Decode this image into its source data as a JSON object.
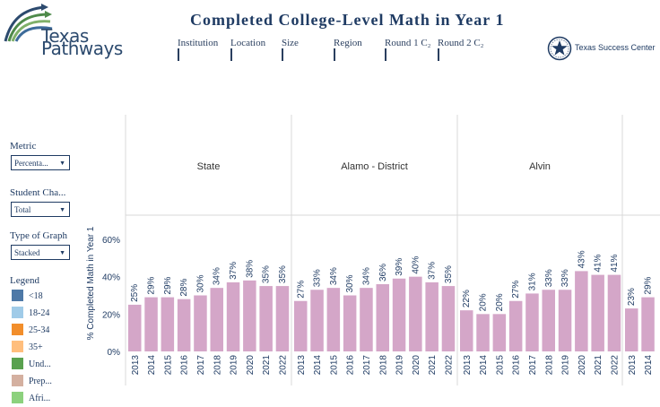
{
  "brand": {
    "line1": "Texas",
    "line2": "Pathways"
  },
  "title": "Completed College-Level Math in Year 1",
  "filters": [
    "Institution",
    "Location",
    "Size",
    "Region",
    "Round 1 C₂",
    "Round 2 C₂"
  ],
  "partner": "Texas Success Center",
  "controls": {
    "metric": {
      "label": "Metric",
      "value": "Percenta..."
    },
    "student": {
      "label": "Student Cha...",
      "value": "Total"
    },
    "graph": {
      "label": "Type of Graph",
      "value": "Stacked"
    }
  },
  "legend": {
    "title": "Legend",
    "items": [
      {
        "label": "<18",
        "color": "#4e79a7"
      },
      {
        "label": "18-24",
        "color": "#a0cbe8"
      },
      {
        "label": "25-34",
        "color": "#f28e2b"
      },
      {
        "label": "35+",
        "color": "#ffbe7d"
      },
      {
        "label": "Und...",
        "color": "#59a14f"
      },
      {
        "label": "Prep...",
        "color": "#d4b0a0"
      },
      {
        "label": "Afri...",
        "color": "#8cd17d"
      }
    ]
  },
  "chart_data": {
    "type": "bar",
    "ylabel": "% Completed Math in Year 1",
    "yticks": [
      "0%",
      "20%",
      "40%",
      "60%"
    ],
    "ylim": [
      0,
      0.7
    ],
    "bar_color": "#d4a6c8",
    "panels": [
      {
        "name": "State",
        "years": [
          "2013",
          "2014",
          "2015",
          "2016",
          "2017",
          "2018",
          "2019",
          "2020",
          "2021",
          "2022"
        ],
        "values": [
          0.25,
          0.29,
          0.29,
          0.28,
          0.3,
          0.34,
          0.37,
          0.38,
          0.35,
          0.35
        ],
        "labels": [
          "25%",
          "29%",
          "29%",
          "28%",
          "30%",
          "34%",
          "37%",
          "38%",
          "35%",
          "35%"
        ]
      },
      {
        "name": "Alamo - District",
        "years": [
          "2013",
          "2014",
          "2015",
          "2016",
          "2017",
          "2018",
          "2019",
          "2020",
          "2021",
          "2022"
        ],
        "values": [
          0.27,
          0.33,
          0.34,
          0.3,
          0.34,
          0.36,
          0.39,
          0.4,
          0.37,
          0.35
        ],
        "labels": [
          "27%",
          "33%",
          "34%",
          "30%",
          "34%",
          "36%",
          "39%",
          "40%",
          "37%",
          "35%"
        ]
      },
      {
        "name": "Alvin",
        "years": [
          "2013",
          "2014",
          "2015",
          "2016",
          "2017",
          "2018",
          "2019",
          "2020",
          "2021",
          "2022"
        ],
        "values": [
          0.22,
          0.2,
          0.2,
          0.27,
          0.31,
          0.33,
          0.33,
          0.43,
          0.41,
          0.41
        ],
        "labels": [
          "22%",
          "20%",
          "20%",
          "27%",
          "31%",
          "33%",
          "33%",
          "43%",
          "41%",
          "41%"
        ]
      },
      {
        "name": "",
        "years": [
          "2013",
          "2014"
        ],
        "values": [
          0.23,
          0.29
        ],
        "labels": [
          "23%",
          "29%"
        ]
      }
    ]
  }
}
